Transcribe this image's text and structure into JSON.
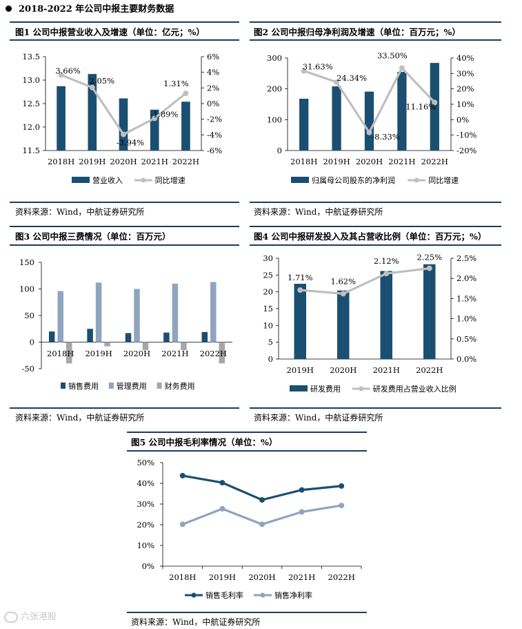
{
  "section_title": "2018-2022 年公司中报主要财务数据",
  "source_text": "资料来源：Wind，中航证券研究所",
  "watermark": "六张港股",
  "colors": {
    "bar": "#1b4f72",
    "bar_light": "#8fa4be",
    "bar_gray": "#a6a6a6",
    "line_gray": "#bfbfbf",
    "line_dark": "#1b4f72",
    "rule": "#1e3a5f"
  },
  "chart_data": [
    {
      "id": "fig1",
      "title": "图1  公司中报营业收入及增速（单位：亿元；%）",
      "type": "bar",
      "categories": [
        "2018H",
        "2019H",
        "2020H",
        "2021H",
        "2022H"
      ],
      "ylim": [
        11.5,
        13.5
      ],
      "yticks": [
        "11.5",
        "12.0",
        "12.5",
        "13.0",
        "13.5"
      ],
      "y2lim": [
        -6,
        6
      ],
      "y2ticks": [
        "-6%",
        "-4%",
        "-2%",
        "0%",
        "2%",
        "4%",
        "6%"
      ],
      "series": [
        {
          "name": "营业收入",
          "kind": "bar",
          "values": [
            12.87,
            13.13,
            12.61,
            12.37,
            12.54
          ]
        },
        {
          "name": "同比增速",
          "kind": "line",
          "axis": "right",
          "values": [
            3.66,
            2.05,
            -3.94,
            -1.89,
            1.31
          ],
          "labels": [
            "3.66%",
            "2.05%",
            "-3.94%",
            "-1.89%",
            "1.31%"
          ]
        }
      ],
      "legend": "bottom-center",
      "grid": false
    },
    {
      "id": "fig2",
      "title": "图2  公司中报归母净利润及增速（单位：百万元；%）",
      "type": "bar",
      "categories": [
        "2018H",
        "2019H",
        "2020H",
        "2021H",
        "2022H"
      ],
      "ylim": [
        0,
        300
      ],
      "yticks": [
        "0",
        "100",
        "200",
        "300"
      ],
      "y2lim": [
        -20,
        40
      ],
      "y2ticks": [
        "-20%",
        "-10%",
        "0%",
        "10%",
        "20%",
        "30%",
        "40%"
      ],
      "series": [
        {
          "name": "归属母公司股东的净利润",
          "kind": "bar",
          "values": [
            168,
            208,
            191,
            255,
            284
          ]
        },
        {
          "name": "同比增速",
          "kind": "line",
          "axis": "right",
          "values": [
            31.63,
            24.34,
            -8.33,
            33.5,
            11.16
          ],
          "labels": [
            "31.63%",
            "24.34%",
            "-8.33%",
            "33.50%",
            "11.16%"
          ]
        }
      ],
      "legend": "bottom-center",
      "grid": false
    },
    {
      "id": "fig3",
      "title": "图3  公司中报三费情况（单位：百万元）",
      "type": "bar",
      "categories": [
        "2018H",
        "2019H",
        "2020H",
        "2021H",
        "2022H"
      ],
      "ylim": [
        -50,
        150
      ],
      "yticks": [
        "-50",
        "0",
        "50",
        "100",
        "150"
      ],
      "series": [
        {
          "name": "销售费用",
          "kind": "bar",
          "values": [
            20,
            25,
            17,
            18,
            19
          ]
        },
        {
          "name": "管理费用",
          "kind": "bar",
          "values": [
            96,
            112,
            100,
            110,
            113
          ]
        },
        {
          "name": "财务费用",
          "kind": "bar",
          "values": [
            -40,
            -8,
            -15,
            -15,
            -40
          ]
        }
      ],
      "legend": "bottom-center",
      "grid": false
    },
    {
      "id": "fig4",
      "title": "图4  公司中报研发投入及其占营收比例（单位：百万元；%）",
      "type": "bar",
      "categories": [
        "2019H",
        "2020H",
        "2021H",
        "2022H"
      ],
      "ylim": [
        0,
        30
      ],
      "yticks": [
        "0",
        "5",
        "10",
        "15",
        "20",
        "25",
        "30"
      ],
      "y2lim": [
        0,
        2.5
      ],
      "y2ticks": [
        "0.0%",
        "0.5%",
        "1.0%",
        "1.5%",
        "2.0%",
        "2.5%"
      ],
      "series": [
        {
          "name": "研发费用",
          "kind": "bar",
          "values": [
            22.4,
            20.4,
            26.2,
            28.2
          ]
        },
        {
          "name": "研发费用占营业收入比例",
          "kind": "line",
          "axis": "right",
          "values": [
            1.71,
            1.62,
            2.12,
            2.25
          ],
          "labels": [
            "1.71%",
            "1.62%",
            "2.12%",
            "2.25%"
          ]
        }
      ],
      "legend": "bottom-center",
      "grid": false
    },
    {
      "id": "fig5",
      "title": "图5  公司中报毛利率情况（单位：%）",
      "type": "line",
      "categories": [
        "2018H",
        "2019H",
        "2020H",
        "2021H",
        "2022H"
      ],
      "ylim": [
        0,
        50
      ],
      "yticks": [
        "0%",
        "10%",
        "20%",
        "30%",
        "40%",
        "50%"
      ],
      "series": [
        {
          "name": "销售毛利率",
          "kind": "line",
          "values": [
            43.7,
            40.3,
            32.0,
            36.8,
            38.7
          ]
        },
        {
          "name": "销售净利率",
          "kind": "line",
          "values": [
            20.2,
            27.7,
            20.2,
            26.2,
            29.3
          ]
        }
      ],
      "legend": "bottom-center",
      "grid": false
    }
  ]
}
